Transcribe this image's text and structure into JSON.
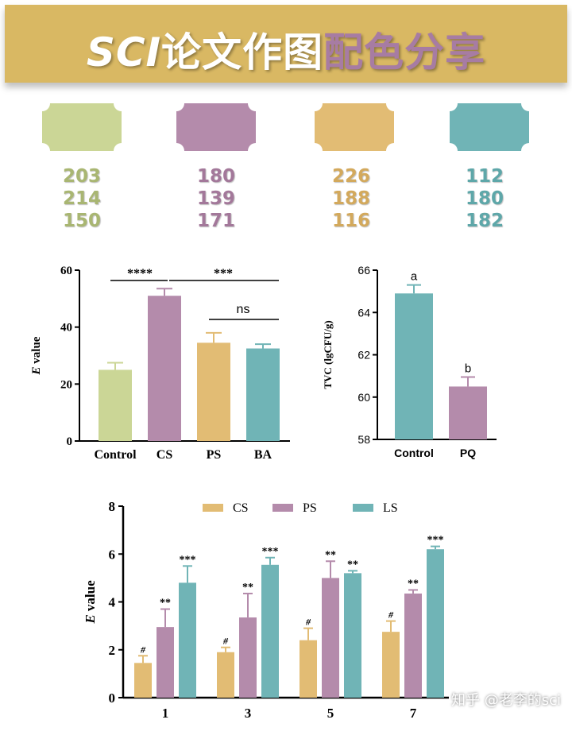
{
  "banner": {
    "part1": "SCI",
    "part2": "论文作图",
    "part3": "配色分享"
  },
  "palette": [
    {
      "hex": "#cbd696",
      "r": "203",
      "g": "214",
      "b": "150",
      "text_color": "#a9b672"
    },
    {
      "hex": "#b48bab",
      "r": "180",
      "g": "139",
      "b": "171",
      "text_color": "#a3789a"
    },
    {
      "hex": "#e2bc74",
      "r": "226",
      "g": "188",
      "b": "116",
      "text_color": "#d3a95c"
    },
    {
      "hex": "#70b4b6",
      "r": "112",
      "g": "180",
      "b": "182",
      "text_color": "#5ea7a9"
    }
  ],
  "chart_data": [
    {
      "type": "bar",
      "categories": [
        "Control",
        "CS",
        "PS",
        "BA"
      ],
      "values": [
        25,
        51,
        34.5,
        32.5
      ],
      "errors": [
        2.5,
        2.5,
        3.5,
        1.5
      ],
      "colors": [
        "#cbd696",
        "#b48bab",
        "#e2bc74",
        "#70b4b6"
      ],
      "ylabel_italic": "E",
      "ylabel_rest": " value",
      "ylim": [
        0,
        60
      ],
      "yticks": [
        0,
        20,
        40,
        60
      ],
      "annotations": [
        "****",
        "***",
        "ns"
      ]
    },
    {
      "type": "bar",
      "categories": [
        "Control",
        "PQ"
      ],
      "values": [
        64.9,
        60.5
      ],
      "errors": [
        0.4,
        0.45
      ],
      "colors": [
        "#70b4b6",
        "#b48bab"
      ],
      "ylabel": "TVC (lgCFU/g)",
      "ylim": [
        58,
        66
      ],
      "yticks": [
        58,
        60,
        62,
        64,
        66
      ],
      "letters": [
        "a",
        "b"
      ]
    },
    {
      "type": "bar",
      "categories": [
        "1",
        "3",
        "5",
        "7"
      ],
      "series": [
        {
          "name": "CS",
          "color": "#e2bc74",
          "values": [
            1.45,
            1.9,
            2.4,
            2.75
          ],
          "errors": [
            0.3,
            0.2,
            0.5,
            0.45
          ],
          "marks": [
            "#",
            "#",
            "#",
            "#"
          ]
        },
        {
          "name": "PS",
          "color": "#b48bab",
          "values": [
            2.95,
            3.35,
            5.0,
            4.35
          ],
          "errors": [
            0.75,
            1.0,
            0.7,
            0.15
          ],
          "marks": [
            "**",
            "**",
            "**",
            "**"
          ]
        },
        {
          "name": "LS",
          "color": "#70b4b6",
          "values": [
            4.8,
            5.55,
            5.2,
            6.2
          ],
          "errors": [
            0.7,
            0.3,
            0.1,
            0.12
          ],
          "marks": [
            "***",
            "***",
            "**",
            "***"
          ]
        }
      ],
      "ylabel_italic": "E",
      "ylabel_rest": " value",
      "ylim": [
        0,
        8
      ],
      "yticks": [
        0,
        2,
        4,
        6,
        8
      ]
    }
  ],
  "watermark": "知乎 @老李的sci"
}
